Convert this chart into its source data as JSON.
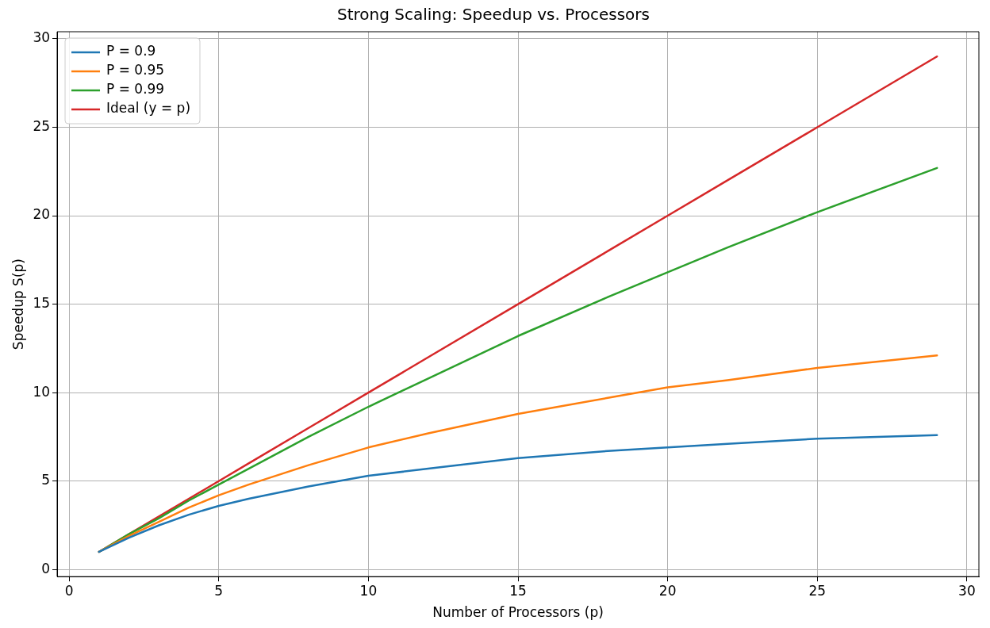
{
  "chart_data": {
    "type": "line",
    "title": "Strong Scaling: Speedup vs. Processors",
    "xlabel": "Number of Processors (p)",
    "ylabel": "Speedup S(p)",
    "x": [
      1,
      2,
      3,
      4,
      5,
      6,
      8,
      10,
      12,
      15,
      18,
      20,
      22,
      25,
      29
    ],
    "series": [
      {
        "name": "P = 0.9",
        "color": "#1f77b4",
        "values": [
          1,
          1.8,
          2.5,
          3.1,
          3.6,
          4.0,
          4.7,
          5.3,
          5.7,
          6.3,
          6.7,
          6.9,
          7.1,
          7.4,
          7.6
        ]
      },
      {
        "name": "P = 0.95",
        "color": "#ff7f0e",
        "values": [
          1,
          1.9,
          2.7,
          3.5,
          4.2,
          4.8,
          5.9,
          6.9,
          7.7,
          8.8,
          9.7,
          10.3,
          10.7,
          11.4,
          12.1
        ]
      },
      {
        "name": "P = 0.99",
        "color": "#2ca02c",
        "values": [
          1,
          2.0,
          2.9,
          3.9,
          4.8,
          5.7,
          7.5,
          9.2,
          10.8,
          13.2,
          15.4,
          16.8,
          18.2,
          20.2,
          22.7
        ]
      },
      {
        "name": "Ideal (y = p)",
        "color": "#d62728",
        "values": [
          1,
          2,
          3,
          4,
          5,
          6,
          8,
          10,
          12,
          15,
          18,
          20,
          22,
          25,
          29
        ]
      }
    ],
    "xlim": [
      -0.4,
      30.4
    ],
    "ylim": [
      -0.4,
      30.4
    ],
    "xticks": [
      0,
      5,
      10,
      15,
      20,
      25,
      30
    ],
    "yticks": [
      0,
      5,
      10,
      15,
      20,
      25,
      30
    ],
    "grid": true,
    "legend": "top left",
    "marker": "none",
    "line_style": "solid"
  }
}
